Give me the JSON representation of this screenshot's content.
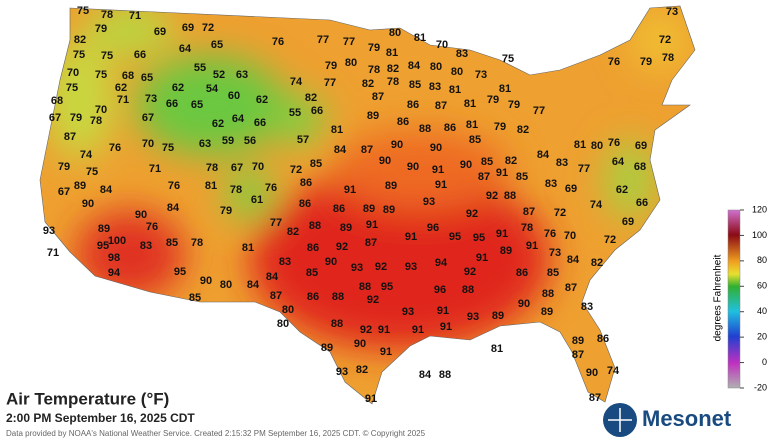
{
  "title": "Air Temperature (°F)",
  "subtitle": "2:00 PM September 16, 2025 CDT",
  "credit": "Data provided by NOAA's National Weather Service. Created 2:15:32 PM September 16, 2025 CDT. © Copyright 2025",
  "logo": "Mesonet",
  "colorbar": {
    "label": "degrees Fahrenheit",
    "ticks": [
      120,
      100,
      80,
      60,
      40,
      20,
      0,
      -20
    ]
  },
  "stations": [
    75,
    78,
    71,
    79,
    69,
    69,
    72,
    82,
    75,
    66,
    64,
    65,
    75,
    70,
    75,
    68,
    65,
    55,
    52,
    63,
    62,
    62,
    54,
    60,
    62,
    75,
    71,
    73,
    66,
    65,
    68,
    67,
    79,
    78,
    70,
    67,
    62,
    64,
    66,
    55,
    66,
    63,
    59,
    56,
    57,
    87,
    76,
    70,
    75,
    74,
    79,
    75,
    71,
    78,
    67,
    70,
    72,
    85,
    67,
    89,
    84,
    76,
    81,
    78,
    76,
    86,
    90,
    90,
    84,
    79,
    61,
    86,
    93,
    89,
    76,
    77,
    82,
    95,
    100,
    83,
    85,
    78,
    81,
    71,
    98,
    94,
    95,
    90,
    80,
    84,
    85,
    84,
    87,
    80,
    83,
    80,
    76,
    77,
    77,
    79,
    81,
    80,
    81,
    70,
    83,
    75,
    73,
    72,
    76,
    79,
    78,
    79,
    80,
    78,
    82,
    84,
    80,
    80,
    73,
    81,
    74,
    77,
    82,
    78,
    85,
    83,
    81,
    82,
    87,
    86,
    87,
    81,
    79,
    79,
    77,
    89,
    86,
    88,
    86,
    81,
    79,
    82,
    81,
    85,
    84,
    87,
    90,
    90,
    90,
    90,
    91,
    90,
    85,
    82,
    84,
    83,
    81,
    80,
    76,
    69,
    77,
    64,
    68,
    91,
    89,
    91,
    87,
    91,
    85,
    83,
    69,
    62,
    88,
    86,
    89,
    89,
    93,
    92,
    92,
    88,
    87,
    74,
    66,
    72,
    69,
    89,
    91,
    96,
    95,
    95,
    91,
    78,
    76,
    70,
    72,
    86,
    92,
    87,
    91,
    91,
    89,
    91,
    73,
    90,
    93,
    92,
    93,
    94,
    92,
    86,
    85,
    84,
    82,
    85,
    88,
    95,
    96,
    88,
    87,
    88,
    86,
    88,
    92,
    90,
    83,
    89,
    93,
    91,
    93,
    89,
    88,
    92,
    91,
    91,
    91,
    89,
    90,
    91,
    81,
    89,
    86,
    87,
    93,
    82,
    84,
    88,
    90,
    74,
    91,
    87
  ]
}
